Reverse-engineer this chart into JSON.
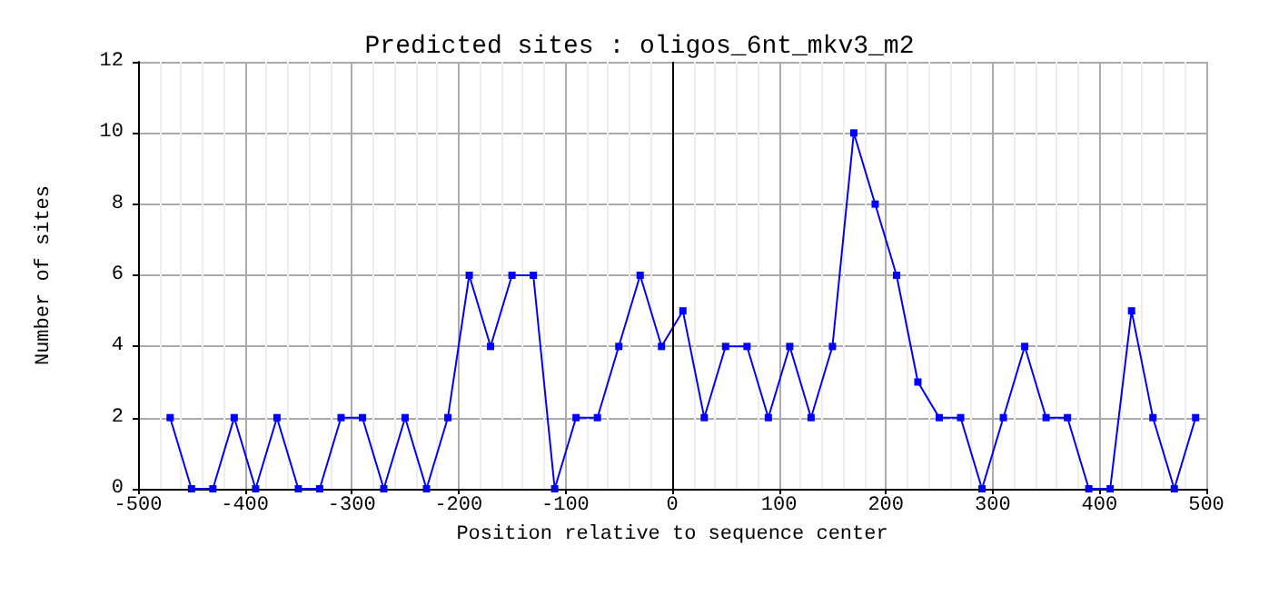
{
  "chart_data": {
    "type": "line",
    "title": "Predicted sites : oligos_6nt_mkv3_m2",
    "xlabel": "Position relative to sequence center",
    "ylabel": "Number of sites",
    "x": [
      -470,
      -450,
      -430,
      -410,
      -390,
      -370,
      -350,
      -330,
      -310,
      -290,
      -270,
      -250,
      -230,
      -210,
      -190,
      -170,
      -150,
      -130,
      -110,
      -90,
      -70,
      -50,
      -30,
      -10,
      10,
      30,
      50,
      70,
      90,
      110,
      130,
      150,
      170,
      190,
      210,
      230,
      250,
      270,
      290,
      310,
      330,
      350,
      370,
      390,
      410,
      430,
      450,
      470,
      490
    ],
    "series": [
      {
        "color": "#0000ff",
        "values": [
          2,
          0,
          0,
          2,
          0,
          2,
          0,
          0,
          2,
          2,
          0,
          2,
          0,
          2,
          6,
          4,
          6,
          6,
          0,
          2,
          2,
          4,
          6,
          4,
          5,
          2,
          4,
          4,
          2,
          4,
          2,
          4,
          10,
          8,
          6,
          3,
          2,
          2,
          0,
          2,
          4,
          2,
          2,
          0,
          0,
          5,
          2,
          0,
          2
        ]
      }
    ],
    "xlim": [
      -500,
      500
    ],
    "xticks": [
      -500,
      -400,
      -300,
      -200,
      -100,
      0,
      100,
      200,
      300,
      400,
      500
    ],
    "ylim": [
      0,
      12
    ],
    "yticks": [
      0,
      2,
      4,
      6,
      8,
      10,
      12
    ],
    "grid": true,
    "marker": "square",
    "line_style": "solid",
    "ref_lines": [
      {
        "axis": "x",
        "value": 0,
        "color": "#000000"
      }
    ]
  }
}
